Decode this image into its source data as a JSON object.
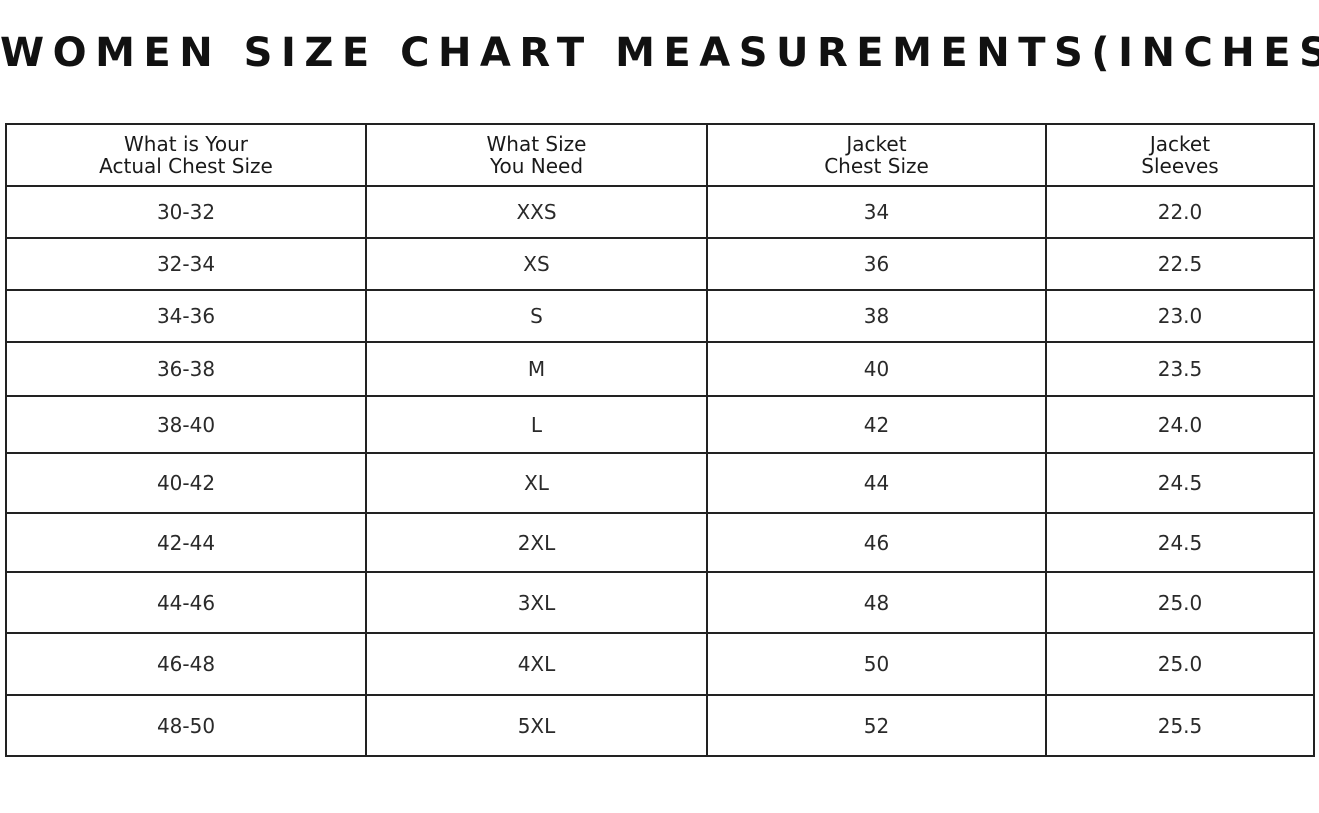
{
  "title": "WOMEN SIZE CHART MEASUREMENTS(INCHES)",
  "table": {
    "headers": [
      [
        "What is Your",
        "Actual Chest Size"
      ],
      [
        "What Size",
        "You Need"
      ],
      [
        "Jacket",
        "Chest Size"
      ],
      [
        "Jacket",
        "Sleeves"
      ]
    ],
    "rows": [
      [
        "30-32",
        "XXS",
        "34",
        "22.0"
      ],
      [
        "32-34",
        "XS",
        "36",
        "22.5"
      ],
      [
        "34-36",
        "S",
        "38",
        "23.0"
      ],
      [
        "36-38",
        "M",
        "40",
        "23.5"
      ],
      [
        "38-40",
        "L",
        "42",
        "24.0"
      ],
      [
        "40-42",
        "XL",
        "44",
        "24.5"
      ],
      [
        "42-44",
        "2XL",
        "46",
        "24.5"
      ],
      [
        "44-46",
        "3XL",
        "48",
        "25.0"
      ],
      [
        "46-48",
        "4XL",
        "50",
        "25.0"
      ],
      [
        "48-50",
        "5XL",
        "52",
        "25.5"
      ]
    ]
  }
}
